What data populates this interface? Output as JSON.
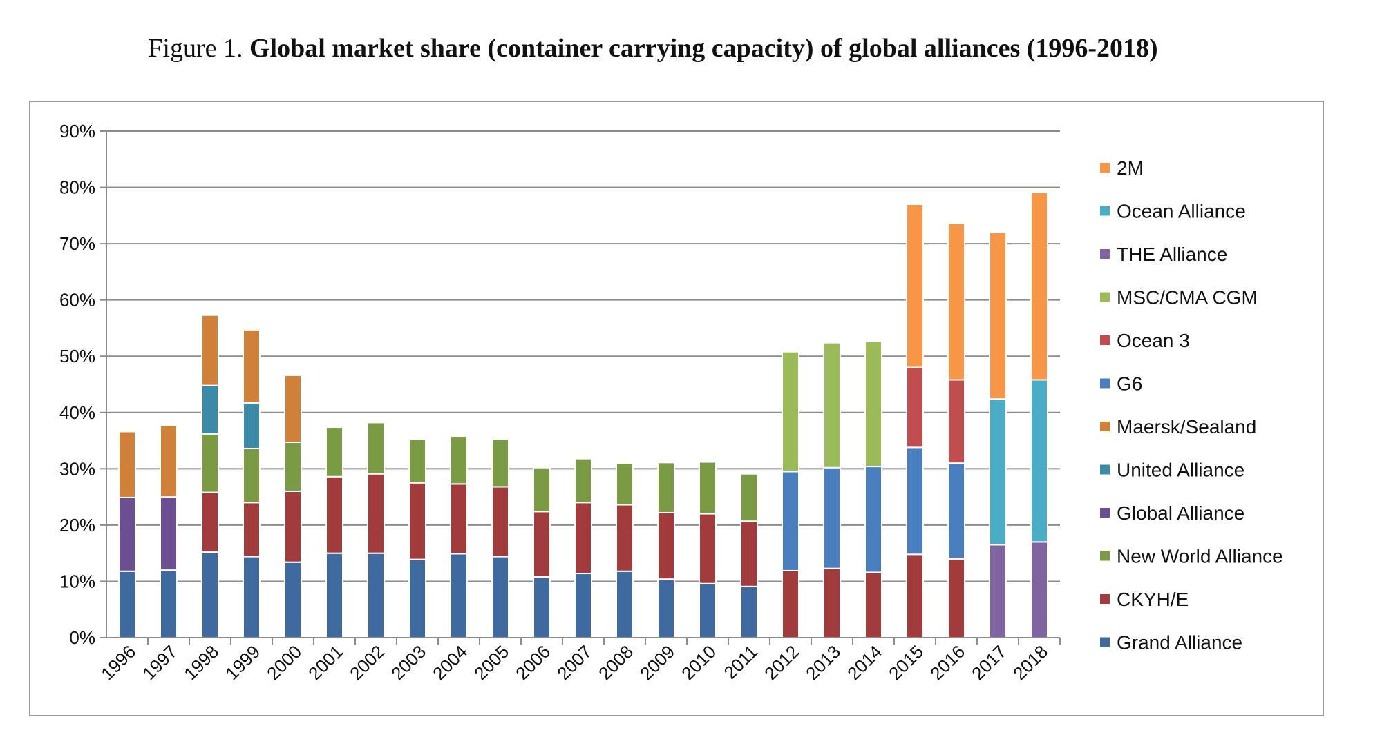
{
  "caption": {
    "lead": "Figure 1. ",
    "bold": "Global market share (container carrying capacity) of global alliances (1996-2018)"
  },
  "chart_data": {
    "type": "bar",
    "stacked": true,
    "title": "",
    "xlabel": "",
    "ylabel": "",
    "ylim": [
      0,
      90
    ],
    "yticks": [
      "0%",
      "10%",
      "20%",
      "30%",
      "40%",
      "50%",
      "60%",
      "70%",
      "80%",
      "90%"
    ],
    "grid": true,
    "legend_position": "right",
    "categories": [
      "1996",
      "1997",
      "1998",
      "1999",
      "2000",
      "2001",
      "2002",
      "2003",
      "2004",
      "2005",
      "2006",
      "2007",
      "2008",
      "2009",
      "2010",
      "2011",
      "2012",
      "2013",
      "2014",
      "2015",
      "2016",
      "2017",
      "2018"
    ],
    "series": [
      {
        "name": "Grand Alliance",
        "color": "#3e6aa0",
        "values": [
          11.8,
          12.0,
          15.2,
          14.4,
          13.4,
          15.0,
          15.0,
          13.9,
          14.9,
          14.4,
          10.8,
          11.4,
          11.8,
          10.4,
          9.6,
          9.1,
          0,
          0,
          0,
          0,
          0,
          0,
          0
        ]
      },
      {
        "name": "CKYH/E",
        "color": "#a23b3b",
        "values": [
          0,
          0,
          10.6,
          9.6,
          12.6,
          13.6,
          14.1,
          13.6,
          12.4,
          12.4,
          11.6,
          12.6,
          11.8,
          11.8,
          12.4,
          11.6,
          11.9,
          12.3,
          11.6,
          14.8,
          14.0,
          0,
          0
        ]
      },
      {
        "name": "New World Alliance",
        "color": "#7a9a44",
        "values": [
          0,
          0,
          10.4,
          9.6,
          8.7,
          8.8,
          9.1,
          7.7,
          8.5,
          8.5,
          7.8,
          7.8,
          7.4,
          8.9,
          9.2,
          8.4,
          0,
          0,
          0,
          0,
          0,
          0,
          0
        ]
      },
      {
        "name": "Global Alliance",
        "color": "#6b4f92",
        "values": [
          13.1,
          13.0,
          0,
          0,
          0,
          0,
          0,
          0,
          0,
          0,
          0,
          0,
          0,
          0,
          0,
          0,
          0,
          0,
          0,
          0,
          0,
          0,
          0
        ]
      },
      {
        "name": "United Alliance",
        "color": "#3a8aa8",
        "values": [
          0,
          0,
          8.6,
          8.1,
          0,
          0,
          0,
          0,
          0,
          0,
          0,
          0,
          0,
          0,
          0,
          0,
          0,
          0,
          0,
          0,
          0,
          0,
          0
        ]
      },
      {
        "name": "Maersk/Sealand",
        "color": "#d1803a",
        "values": [
          11.7,
          12.7,
          12.5,
          13.0,
          11.9,
          0,
          0,
          0,
          0,
          0,
          0,
          0,
          0,
          0,
          0,
          0,
          0,
          0,
          0,
          0,
          0,
          0,
          0
        ]
      },
      {
        "name": "G6",
        "color": "#4a7fbf",
        "values": [
          0,
          0,
          0,
          0,
          0,
          0,
          0,
          0,
          0,
          0,
          0,
          0,
          0,
          0,
          0,
          0,
          17.6,
          17.9,
          18.8,
          19.0,
          17.0,
          0,
          0
        ]
      },
      {
        "name": "Ocean 3",
        "color": "#c04e4e",
        "values": [
          0,
          0,
          0,
          0,
          0,
          0,
          0,
          0,
          0,
          0,
          0,
          0,
          0,
          0,
          0,
          0,
          0,
          0,
          0,
          14.2,
          14.8,
          0,
          0
        ]
      },
      {
        "name": "MSC/CMA CGM",
        "color": "#9bbb59",
        "values": [
          0,
          0,
          0,
          0,
          0,
          0,
          0,
          0,
          0,
          0,
          0,
          0,
          0,
          0,
          0,
          0,
          21.3,
          22.2,
          22.2,
          0,
          0,
          0,
          0
        ]
      },
      {
        "name": "THE Alliance",
        "color": "#8064a2",
        "values": [
          0,
          0,
          0,
          0,
          0,
          0,
          0,
          0,
          0,
          0,
          0,
          0,
          0,
          0,
          0,
          0,
          0,
          0,
          0,
          0,
          0,
          16.5,
          17.0
        ]
      },
      {
        "name": "Ocean Alliance",
        "color": "#4bacc6",
        "values": [
          0,
          0,
          0,
          0,
          0,
          0,
          0,
          0,
          0,
          0,
          0,
          0,
          0,
          0,
          0,
          0,
          0,
          0,
          0,
          0,
          0,
          25.9,
          28.8
        ]
      },
      {
        "name": "2M",
        "color": "#f79646",
        "values": [
          0,
          0,
          0,
          0,
          0,
          0,
          0,
          0,
          0,
          0,
          0,
          0,
          0,
          0,
          0,
          0,
          0,
          0,
          0,
          29.0,
          27.8,
          29.6,
          33.3
        ]
      }
    ]
  }
}
